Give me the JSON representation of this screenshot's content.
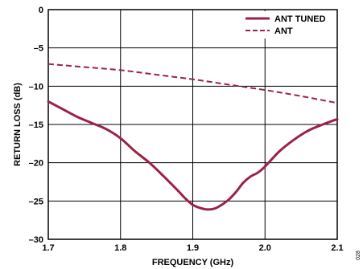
{
  "chart_data": {
    "type": "line",
    "xlabel": "FREQUENCY (GHz)",
    "ylabel": "RETURN LOSS (dB)",
    "xlim": [
      1.7,
      2.1
    ],
    "ylim": [
      -30,
      0
    ],
    "xticks": [
      1.7,
      1.8,
      1.9,
      2.0,
      2.1
    ],
    "xtick_labels": [
      "1.7",
      "1.8",
      "1.9",
      "2.0",
      "2.1"
    ],
    "yticks": [
      0,
      -5,
      -10,
      -15,
      -20,
      -25,
      -30
    ],
    "ytick_labels": [
      "0",
      "–5",
      "–10",
      "–15",
      "–20",
      "–25",
      "–30"
    ],
    "grid": true,
    "legend_position": "top-right",
    "series": [
      {
        "name": "ANT TUNED",
        "style": "solid",
        "color": "#9b2246",
        "x": [
          1.7,
          1.72,
          1.74,
          1.76,
          1.78,
          1.8,
          1.82,
          1.84,
          1.86,
          1.88,
          1.89,
          1.9,
          1.91,
          1.92,
          1.93,
          1.94,
          1.95,
          1.96,
          1.97,
          1.98,
          1.99,
          2.0,
          2.02,
          2.04,
          2.06,
          2.08,
          2.1
        ],
        "y": [
          -12.0,
          -13.0,
          -14.0,
          -14.8,
          -15.6,
          -16.8,
          -18.5,
          -20.0,
          -21.8,
          -23.7,
          -24.7,
          -25.5,
          -25.9,
          -26.1,
          -26.0,
          -25.5,
          -24.8,
          -23.8,
          -22.6,
          -21.8,
          -21.3,
          -20.5,
          -18.5,
          -17.0,
          -15.8,
          -15.0,
          -14.3
        ]
      },
      {
        "name": "ANT",
        "style": "dashed",
        "color": "#9b2246",
        "x": [
          1.7,
          1.75,
          1.8,
          1.85,
          1.9,
          1.95,
          2.0,
          2.05,
          2.1
        ],
        "y": [
          -7.1,
          -7.5,
          -7.9,
          -8.5,
          -9.1,
          -9.8,
          -10.5,
          -11.3,
          -12.2
        ]
      }
    ]
  },
  "figure_id": "028"
}
